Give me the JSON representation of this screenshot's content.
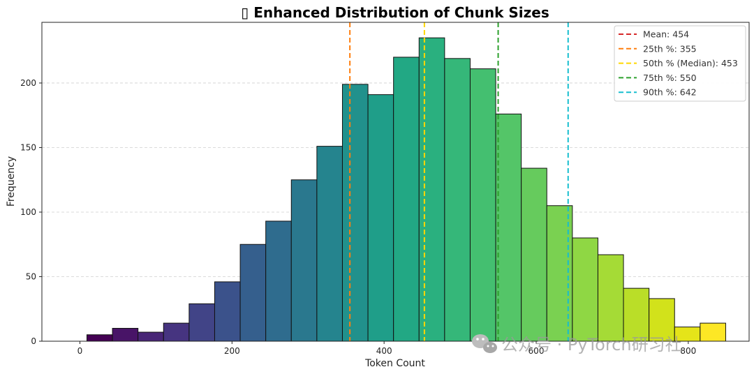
{
  "chart_data": {
    "type": "bar",
    "title": "▯ Enhanced Distribution of Chunk Sizes",
    "xlabel": "Token Count",
    "ylabel": "Frequency",
    "xlim": [
      -50,
      880
    ],
    "ylim": [
      0,
      247
    ],
    "x_ticks": [
      0,
      200,
      400,
      600,
      800
    ],
    "y_ticks": [
      0,
      50,
      100,
      150,
      200
    ],
    "grid": "horizontal dashed",
    "legend_position": "top-right",
    "bin_width": 33.6,
    "bins": [
      {
        "center": 26,
        "value": 5,
        "color": "#440154"
      },
      {
        "center": 59.6,
        "value": 10,
        "color": "#481467"
      },
      {
        "center": 93.2,
        "value": 7,
        "color": "#482576"
      },
      {
        "center": 126.8,
        "value": 14,
        "color": "#463480"
      },
      {
        "center": 160.4,
        "value": 29,
        "color": "#414487"
      },
      {
        "center": 194,
        "value": 46,
        "color": "#3b528b"
      },
      {
        "center": 227.6,
        "value": 75,
        "color": "#355f8d"
      },
      {
        "center": 261.2,
        "value": 93,
        "color": "#2f6c8e"
      },
      {
        "center": 294.8,
        "value": 125,
        "color": "#2a788e"
      },
      {
        "center": 328.4,
        "value": 151,
        "color": "#25848e"
      },
      {
        "center": 362,
        "value": 199,
        "color": "#21918c"
      },
      {
        "center": 395.6,
        "value": 191,
        "color": "#1f9e89"
      },
      {
        "center": 429.2,
        "value": 220,
        "color": "#22a884"
      },
      {
        "center": 462.8,
        "value": 235,
        "color": "#2ab07f"
      },
      {
        "center": 496.4,
        "value": 219,
        "color": "#35b779"
      },
      {
        "center": 530,
        "value": 211,
        "color": "#44bf70"
      },
      {
        "center": 563.6,
        "value": 176,
        "color": "#54c568"
      },
      {
        "center": 597.2,
        "value": 134,
        "color": "#66cb5d"
      },
      {
        "center": 630.8,
        "value": 105,
        "color": "#7ad151"
      },
      {
        "center": 664.4,
        "value": 80,
        "color": "#8fd744"
      },
      {
        "center": 698,
        "value": 67,
        "color": "#a5db36"
      },
      {
        "center": 731.6,
        "value": 41,
        "color": "#bade28"
      },
      {
        "center": 765.2,
        "value": 33,
        "color": "#d2e21b"
      },
      {
        "center": 798.8,
        "value": 11,
        "color": "#e5e419"
      },
      {
        "center": 832.4,
        "value": 14,
        "color": "#fde725"
      }
    ],
    "reference_lines": [
      {
        "label": "Mean: 454",
        "x": 454,
        "color": "#d62728",
        "draw": false
      },
      {
        "label": "25th %: 355",
        "x": 355,
        "color": "#ff7f0e",
        "draw": true
      },
      {
        "label": "50th % (Median): 453",
        "x": 453,
        "color": "#ffd700",
        "draw": true
      },
      {
        "label": "75th %: 550",
        "x": 550,
        "color": "#2ca02c",
        "draw": true
      },
      {
        "label": "90th %: 642",
        "x": 642,
        "color": "#17becf",
        "draw": true
      }
    ]
  },
  "watermark": {
    "text": "公众号 · PyTorch研习社"
  }
}
